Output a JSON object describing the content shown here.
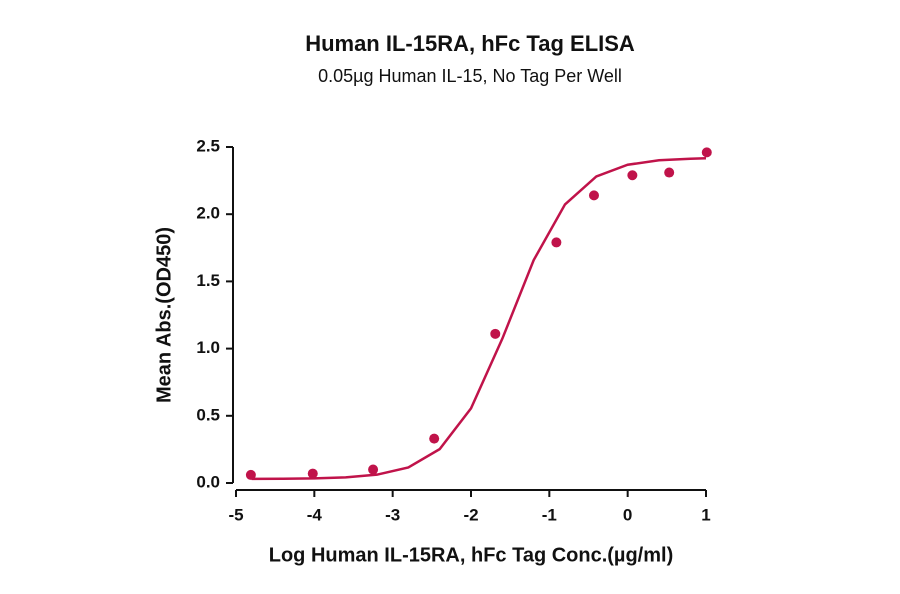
{
  "chart_data": {
    "type": "scatter",
    "title": "Human IL-15RA, hFc Tag ELISA",
    "subtitle": "0.05µg Human IL-15, No Tag Per Well",
    "x_label": "Log Human IL-15RA, hFc Tag Conc.(µg/ml)",
    "y_label": "Mean Abs.(OD450)",
    "xlim": [
      -5,
      1
    ],
    "xticks": [
      -5,
      -4,
      -3,
      -2,
      -1,
      0,
      1
    ],
    "ylim": [
      0,
      2.5
    ],
    "yticks": [
      {
        "value": 0,
        "label": "0.0"
      },
      0.5,
      {
        "value": 1,
        "label": "1.0"
      },
      1.5,
      {
        "value": 2,
        "label": "2.0"
      },
      2.5
    ],
    "series": [
      {
        "style": "points",
        "color": "#c0134a",
        "x": [
          -4.81,
          -4.02,
          -3.25,
          -2.47,
          -1.69,
          -0.91,
          -0.43,
          0.06,
          0.53,
          1.01
        ],
        "values": [
          0.06,
          0.07,
          0.1,
          0.33,
          1.11,
          1.79,
          2.14,
          2.29,
          2.31,
          2.46
        ]
      },
      {
        "style": "line",
        "color": "#c0134a",
        "x": [
          -4.8,
          -4.4,
          -4.0,
          -3.6,
          -3.2,
          -2.8,
          -2.4,
          -2.0,
          -1.6,
          -1.2,
          -0.8,
          -0.4,
          0,
          0.4,
          0.8,
          1.0
        ],
        "values": [
          0.031,
          0.032,
          0.034,
          0.042,
          0.062,
          0.116,
          0.252,
          0.555,
          1.074,
          1.658,
          2.073,
          2.281,
          2.368,
          2.401,
          2.413,
          2.416
        ]
      }
    ]
  }
}
